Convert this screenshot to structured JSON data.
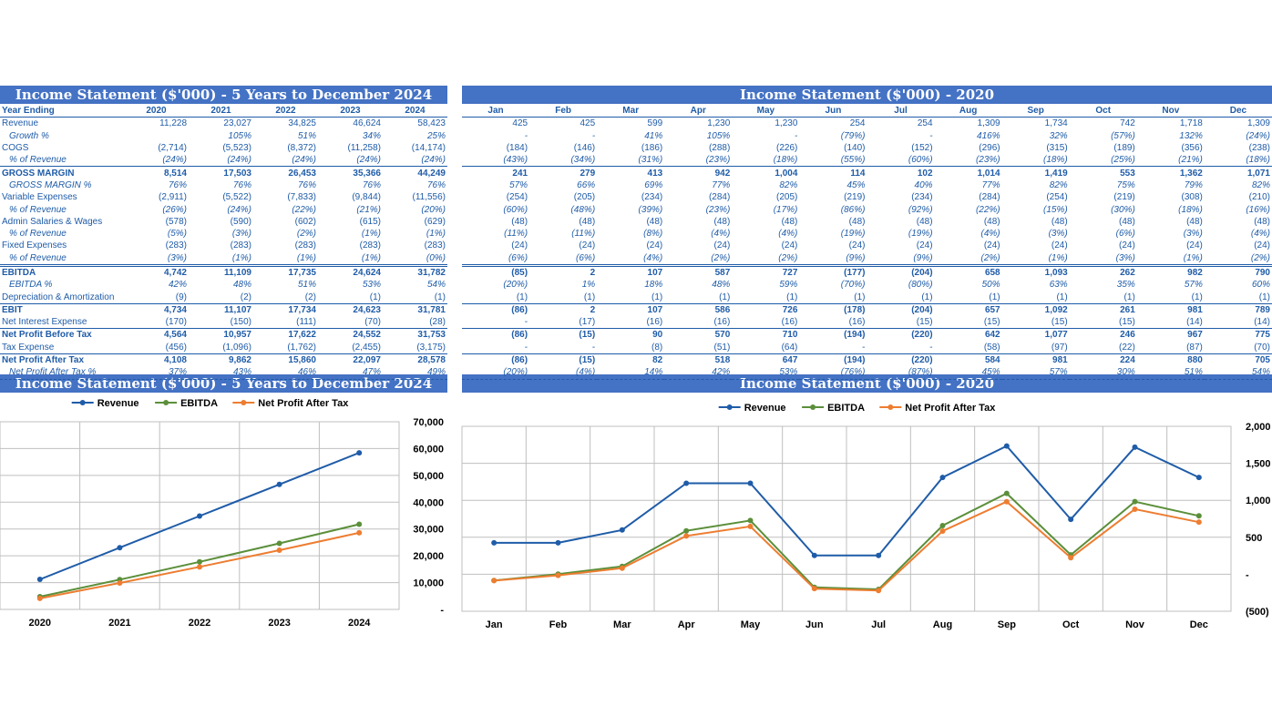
{
  "colors": {
    "header_bg": "#4472C4",
    "text": "#1f5ca8",
    "revenue": "#1f5ca8",
    "ebitda": "#5b8f3a",
    "npat": "#ed7d31"
  },
  "tables": {
    "annual": {
      "title": "Income Statement ($'000) - 5 Years to December 2024",
      "year_label": "Year Ending",
      "columns": [
        "2020",
        "2021",
        "2022",
        "2023",
        "2024"
      ],
      "rows": [
        {
          "label": "Revenue",
          "style": "",
          "values": [
            "11,228",
            "23,027",
            "34,825",
            "46,624",
            "58,423"
          ]
        },
        {
          "label": "Growth %",
          "style": "p",
          "values": [
            "",
            "105%",
            "51%",
            "34%",
            "25%"
          ]
        },
        {
          "label": "COGS",
          "style": "",
          "values": [
            "(2,714)",
            "(5,523)",
            "(8,372)",
            "(11,258)",
            "(14,174)"
          ]
        },
        {
          "label": "% of Revenue",
          "style": "p sepb",
          "values": [
            "(24%)",
            "(24%)",
            "(24%)",
            "(24%)",
            "(24%)"
          ]
        },
        {
          "label": "GROSS MARGIN",
          "style": "b",
          "values": [
            "8,514",
            "17,503",
            "26,453",
            "35,366",
            "44,249"
          ]
        },
        {
          "label": "GROSS MARGIN %",
          "style": "p",
          "values": [
            "76%",
            "76%",
            "76%",
            "76%",
            "76%"
          ]
        },
        {
          "label": "Variable Expenses",
          "style": "",
          "values": [
            "(2,911)",
            "(5,522)",
            "(7,833)",
            "(9,844)",
            "(11,556)"
          ]
        },
        {
          "label": "% of Revenue",
          "style": "p",
          "values": [
            "(26%)",
            "(24%)",
            "(22%)",
            "(21%)",
            "(20%)"
          ]
        },
        {
          "label": "Admin Salaries & Wages",
          "style": "",
          "values": [
            "(578)",
            "(590)",
            "(602)",
            "(615)",
            "(629)"
          ]
        },
        {
          "label": "% of Revenue",
          "style": "p",
          "values": [
            "(5%)",
            "(3%)",
            "(2%)",
            "(1%)",
            "(1%)"
          ]
        },
        {
          "label": "Fixed Expenses",
          "style": "",
          "values": [
            "(283)",
            "(283)",
            "(283)",
            "(283)",
            "(283)"
          ]
        },
        {
          "label": "% of Revenue",
          "style": "p dbl",
          "values": [
            "(3%)",
            "(1%)",
            "(1%)",
            "(1%)",
            "(0%)"
          ]
        },
        {
          "label": "EBITDA",
          "style": "b",
          "values": [
            "4,742",
            "11,109",
            "17,735",
            "24,624",
            "31,782"
          ]
        },
        {
          "label": "EBITDA %",
          "style": "p",
          "values": [
            "42%",
            "48%",
            "51%",
            "53%",
            "54%"
          ]
        },
        {
          "label": "Depreciation & Amortization",
          "style": "sepb",
          "values": [
            "(9)",
            "(2)",
            "(2)",
            "(1)",
            "(1)"
          ]
        },
        {
          "label": "EBIT",
          "style": "b",
          "values": [
            "4,734",
            "11,107",
            "17,734",
            "24,623",
            "31,781"
          ]
        },
        {
          "label": "Net Interest Expense",
          "style": "sepb",
          "values": [
            "(170)",
            "(150)",
            "(111)",
            "(70)",
            "(28)"
          ]
        },
        {
          "label": "Net Profit Before Tax",
          "style": "b",
          "values": [
            "4,564",
            "10,957",
            "17,622",
            "24,552",
            "31,753"
          ]
        },
        {
          "label": "Tax Expense",
          "style": "sepb",
          "values": [
            "(456)",
            "(1,096)",
            "(1,762)",
            "(2,455)",
            "(3,175)"
          ]
        },
        {
          "label": "Net Profit After Tax",
          "style": "b",
          "values": [
            "4,108",
            "9,862",
            "15,860",
            "22,097",
            "28,578"
          ]
        },
        {
          "label": "Net Profit After Tax %",
          "style": "p dash",
          "values": [
            "37%",
            "43%",
            "46%",
            "47%",
            "49%"
          ]
        }
      ]
    },
    "monthly": {
      "title": "Income Statement ($'000) - 2020",
      "columns": [
        "Jan",
        "Feb",
        "Mar",
        "Apr",
        "May",
        "Jun",
        "Jul",
        "Aug",
        "Sep",
        "Oct",
        "Nov",
        "Dec"
      ],
      "rows": [
        {
          "style": "",
          "values": [
            "425",
            "425",
            "599",
            "1,230",
            "1,230",
            "254",
            "254",
            "1,309",
            "1,734",
            "742",
            "1,718",
            "1,309"
          ]
        },
        {
          "style": "p",
          "values": [
            "-",
            "-",
            "41%",
            "105%",
            "-",
            "(79%)",
            "-",
            "416%",
            "32%",
            "(57%)",
            "132%",
            "(24%)"
          ]
        },
        {
          "style": "",
          "values": [
            "(184)",
            "(146)",
            "(186)",
            "(288)",
            "(226)",
            "(140)",
            "(152)",
            "(296)",
            "(315)",
            "(189)",
            "(356)",
            "(238)"
          ]
        },
        {
          "style": "p sepb",
          "values": [
            "(43%)",
            "(34%)",
            "(31%)",
            "(23%)",
            "(18%)",
            "(55%)",
            "(60%)",
            "(23%)",
            "(18%)",
            "(25%)",
            "(21%)",
            "(18%)"
          ]
        },
        {
          "style": "b",
          "values": [
            "241",
            "279",
            "413",
            "942",
            "1,004",
            "114",
            "102",
            "1,014",
            "1,419",
            "553",
            "1,362",
            "1,071"
          ]
        },
        {
          "style": "p",
          "values": [
            "57%",
            "66%",
            "69%",
            "77%",
            "82%",
            "45%",
            "40%",
            "77%",
            "82%",
            "75%",
            "79%",
            "82%"
          ]
        },
        {
          "style": "",
          "values": [
            "(254)",
            "(205)",
            "(234)",
            "(284)",
            "(205)",
            "(219)",
            "(234)",
            "(284)",
            "(254)",
            "(219)",
            "(308)",
            "(210)"
          ]
        },
        {
          "style": "p",
          "values": [
            "(60%)",
            "(48%)",
            "(39%)",
            "(23%)",
            "(17%)",
            "(86%)",
            "(92%)",
            "(22%)",
            "(15%)",
            "(30%)",
            "(18%)",
            "(16%)"
          ]
        },
        {
          "style": "",
          "values": [
            "(48)",
            "(48)",
            "(48)",
            "(48)",
            "(48)",
            "(48)",
            "(48)",
            "(48)",
            "(48)",
            "(48)",
            "(48)",
            "(48)"
          ]
        },
        {
          "style": "p",
          "values": [
            "(11%)",
            "(11%)",
            "(8%)",
            "(4%)",
            "(4%)",
            "(19%)",
            "(19%)",
            "(4%)",
            "(3%)",
            "(6%)",
            "(3%)",
            "(4%)"
          ]
        },
        {
          "style": "",
          "values": [
            "(24)",
            "(24)",
            "(24)",
            "(24)",
            "(24)",
            "(24)",
            "(24)",
            "(24)",
            "(24)",
            "(24)",
            "(24)",
            "(24)"
          ]
        },
        {
          "style": "p dbl",
          "values": [
            "(6%)",
            "(6%)",
            "(4%)",
            "(2%)",
            "(2%)",
            "(9%)",
            "(9%)",
            "(2%)",
            "(1%)",
            "(3%)",
            "(1%)",
            "(2%)"
          ]
        },
        {
          "style": "b",
          "values": [
            "(85)",
            "2",
            "107",
            "587",
            "727",
            "(177)",
            "(204)",
            "658",
            "1,093",
            "262",
            "982",
            "790"
          ]
        },
        {
          "style": "p",
          "values": [
            "(20%)",
            "1%",
            "18%",
            "48%",
            "59%",
            "(70%)",
            "(80%)",
            "50%",
            "63%",
            "35%",
            "57%",
            "60%"
          ]
        },
        {
          "style": "sepb",
          "values": [
            "(1)",
            "(1)",
            "(1)",
            "(1)",
            "(1)",
            "(1)",
            "(1)",
            "(1)",
            "(1)",
            "(1)",
            "(1)",
            "(1)"
          ]
        },
        {
          "style": "b",
          "values": [
            "(86)",
            "2",
            "107",
            "586",
            "726",
            "(178)",
            "(204)",
            "657",
            "1,092",
            "261",
            "981",
            "789"
          ]
        },
        {
          "style": "sepb",
          "values": [
            "-",
            "(17)",
            "(16)",
            "(16)",
            "(16)",
            "(16)",
            "(15)",
            "(15)",
            "(15)",
            "(15)",
            "(14)",
            "(14)"
          ]
        },
        {
          "style": "b",
          "values": [
            "(86)",
            "(15)",
            "90",
            "570",
            "710",
            "(194)",
            "(220)",
            "642",
            "1,077",
            "246",
            "967",
            "775"
          ]
        },
        {
          "style": "sepb",
          "values": [
            "-",
            "-",
            "(8)",
            "(51)",
            "(64)",
            "-",
            "-",
            "(58)",
            "(97)",
            "(22)",
            "(87)",
            "(70)"
          ]
        },
        {
          "style": "b",
          "values": [
            "(86)",
            "(15)",
            "82",
            "518",
            "647",
            "(194)",
            "(220)",
            "584",
            "981",
            "224",
            "880",
            "705"
          ]
        },
        {
          "style": "p dash",
          "values": [
            "(20%)",
            "(4%)",
            "14%",
            "42%",
            "53%",
            "(76%)",
            "(87%)",
            "45%",
            "57%",
            "30%",
            "51%",
            "54%"
          ]
        }
      ]
    }
  },
  "chart_data": [
    {
      "type": "line",
      "title": "Income Statement ($'000) - 5 Years to December 2024",
      "categories": [
        "2020",
        "2021",
        "2022",
        "2023",
        "2024"
      ],
      "series": [
        {
          "name": "Revenue",
          "color": "#1f5ca8",
          "values": [
            11228,
            23027,
            34825,
            46624,
            58423
          ]
        },
        {
          "name": "EBITDA",
          "color": "#5b8f3a",
          "values": [
            4742,
            11109,
            17735,
            24624,
            31782
          ]
        },
        {
          "name": "Net Profit After Tax",
          "color": "#ed7d31",
          "values": [
            4108,
            9862,
            15860,
            22097,
            28578
          ]
        }
      ],
      "ylim": [
        0,
        70000
      ],
      "yticks": [
        0,
        10000,
        20000,
        30000,
        40000,
        50000,
        60000,
        70000
      ],
      "ytick_labels": [
        "-",
        "10,000",
        "20,000",
        "30,000",
        "40,000",
        "50,000",
        "60,000",
        "70,000"
      ],
      "y_axis_side": "right",
      "grid": true,
      "legend": "top"
    },
    {
      "type": "line",
      "title": "Income Statement ($'000) - 2020",
      "categories": [
        "Jan",
        "Feb",
        "Mar",
        "Apr",
        "May",
        "Jun",
        "Jul",
        "Aug",
        "Sep",
        "Oct",
        "Nov",
        "Dec"
      ],
      "series": [
        {
          "name": "Revenue",
          "color": "#1f5ca8",
          "values": [
            425,
            425,
            599,
            1230,
            1230,
            254,
            254,
            1309,
            1734,
            742,
            1718,
            1309
          ]
        },
        {
          "name": "EBITDA",
          "color": "#5b8f3a",
          "values": [
            -85,
            2,
            107,
            587,
            727,
            -177,
            -204,
            658,
            1093,
            262,
            982,
            790
          ]
        },
        {
          "name": "Net Profit After Tax",
          "color": "#ed7d31",
          "values": [
            -86,
            -15,
            82,
            518,
            647,
            -194,
            -220,
            584,
            981,
            224,
            880,
            705
          ]
        }
      ],
      "ylim": [
        -500,
        2000
      ],
      "yticks": [
        -500,
        0,
        500,
        1000,
        1500,
        2000
      ],
      "ytick_labels": [
        "(500)",
        "-",
        "500",
        "1,000",
        "1,500",
        "2,000"
      ],
      "y_axis_side": "right",
      "grid": true,
      "legend": "top"
    }
  ]
}
